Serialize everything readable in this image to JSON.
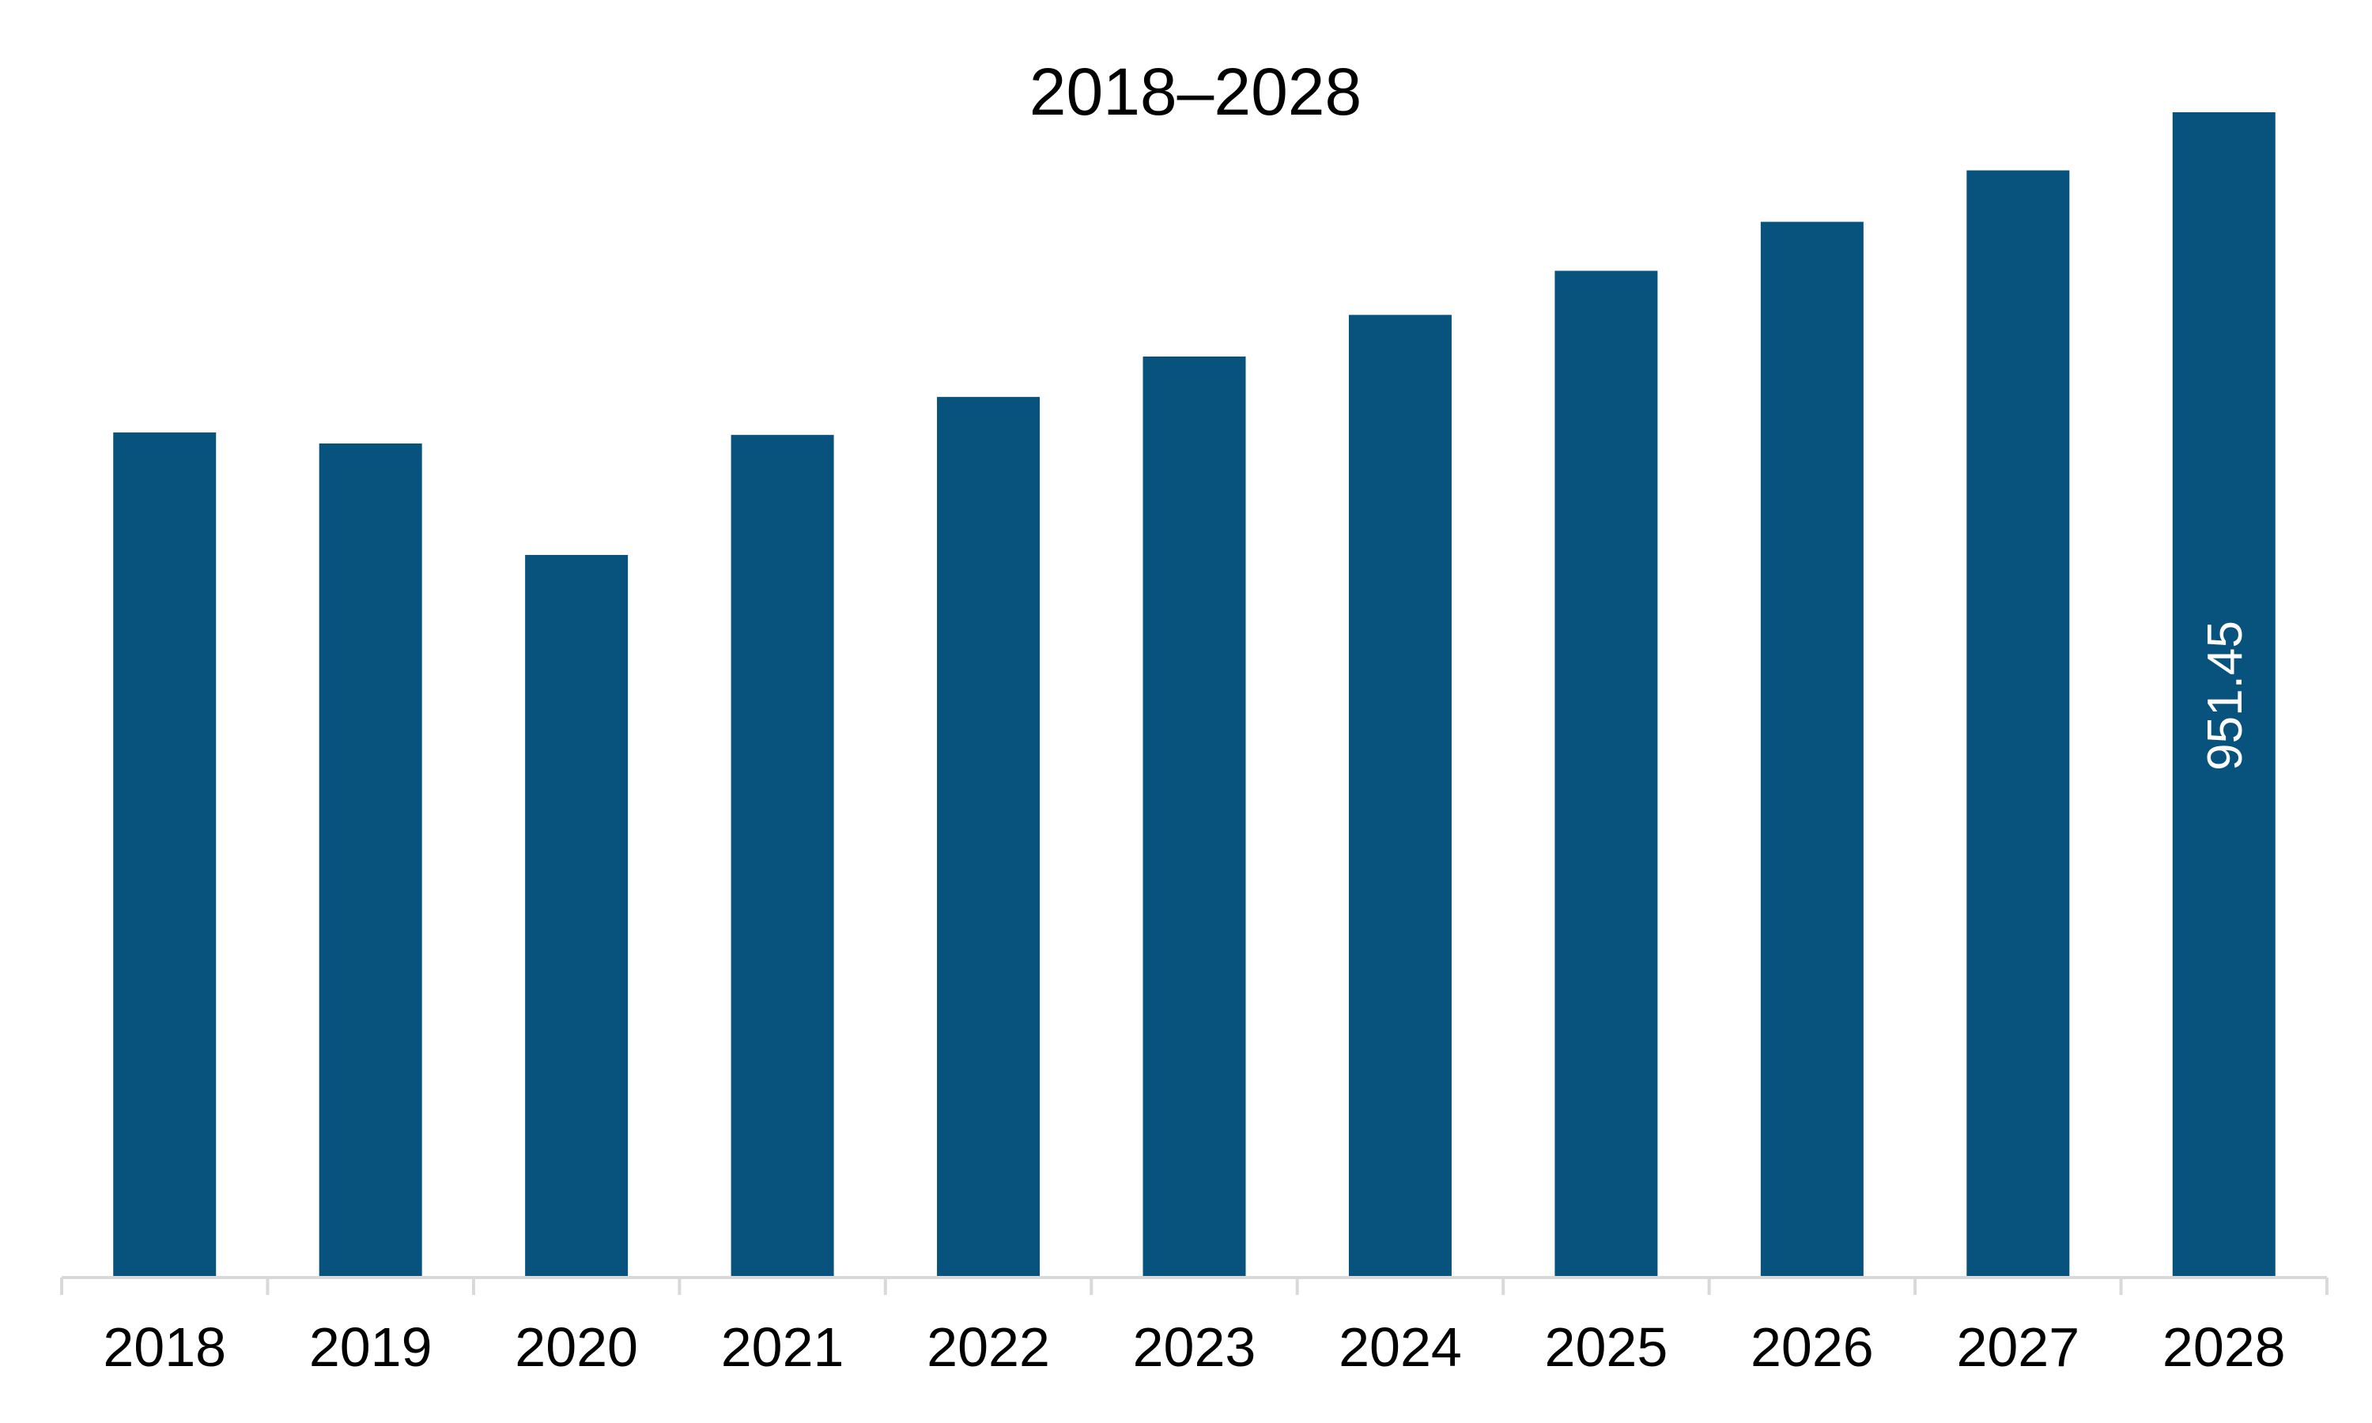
{
  "chart_data": {
    "type": "bar",
    "title": "2018–2028",
    "categories": [
      "2018",
      "2019",
      "2020",
      "2021",
      "2022",
      "2023",
      "2024",
      "2025",
      "2026",
      "2027",
      "2028"
    ],
    "values": [
      690,
      681,
      590,
      688,
      719,
      752,
      786,
      822,
      862,
      904,
      951.45
    ],
    "data_labels": [
      "",
      "",
      "",
      "",
      "",
      "",
      "",
      "",
      "",
      "",
      "951.45"
    ],
    "xlabel": "",
    "ylabel": "",
    "ylim": [
      0,
      951.45
    ],
    "grid": false,
    "legend": "none",
    "colors": {
      "bar": "#08527e",
      "axis": "#d9d9d9",
      "text": "#000000",
      "data_label": "#ffffff"
    }
  }
}
